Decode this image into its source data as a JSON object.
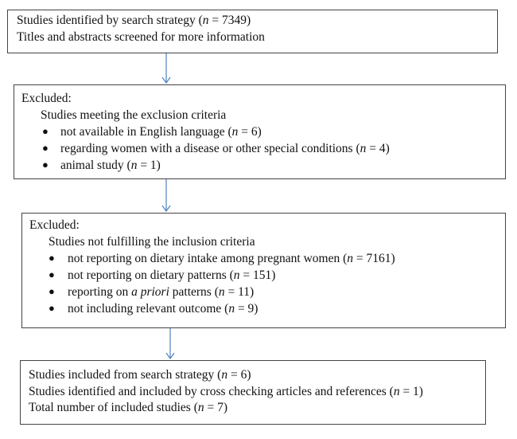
{
  "arrow_color": "#4f81bd",
  "box1": {
    "lines": [
      {
        "pre": "Studies identified by search strategy (",
        "var": "n",
        "post": " = 7349)"
      },
      {
        "pre": "Titles and abstracts screened for more information",
        "var": "",
        "post": ""
      }
    ]
  },
  "box2": {
    "heading": "Excluded:",
    "subheading": "Studies meeting the exclusion criteria",
    "items": [
      {
        "pre": "not available in English language (",
        "var": "n",
        "post": " = 6)"
      },
      {
        "pre": "regarding women with a disease or other special conditions (",
        "var": "n",
        "post": " = 4)"
      },
      {
        "pre": "animal study (",
        "var": "n",
        "post": " = 1)"
      }
    ]
  },
  "box3": {
    "heading": "Excluded:",
    "subheading": "Studies not fulfilling the inclusion criteria",
    "items": [
      {
        "pre": "not reporting on dietary intake among pregnant women (",
        "var": "n",
        "post": " = 7161)"
      },
      {
        "pre": "not reporting on dietary patterns (",
        "var": "n",
        "post": " = 151)"
      },
      {
        "pre": "reporting on ",
        "var": "a priori",
        "post": " patterns (",
        "var2": "n",
        "post2": " = 11)"
      },
      {
        "pre": "not including relevant outcome (",
        "var": "n",
        "post": " = 9)"
      }
    ]
  },
  "box4": {
    "lines": [
      {
        "pre": "Studies included from search strategy (",
        "var": "n",
        "post": " = 6)"
      },
      {
        "pre": "Studies identified and included by cross checking articles and references (",
        "var": "n",
        "post": " = 1)"
      },
      {
        "pre": "Total number of included studies (",
        "var": "n",
        "post": " = 7)"
      }
    ]
  },
  "bullet_symbol": "●"
}
